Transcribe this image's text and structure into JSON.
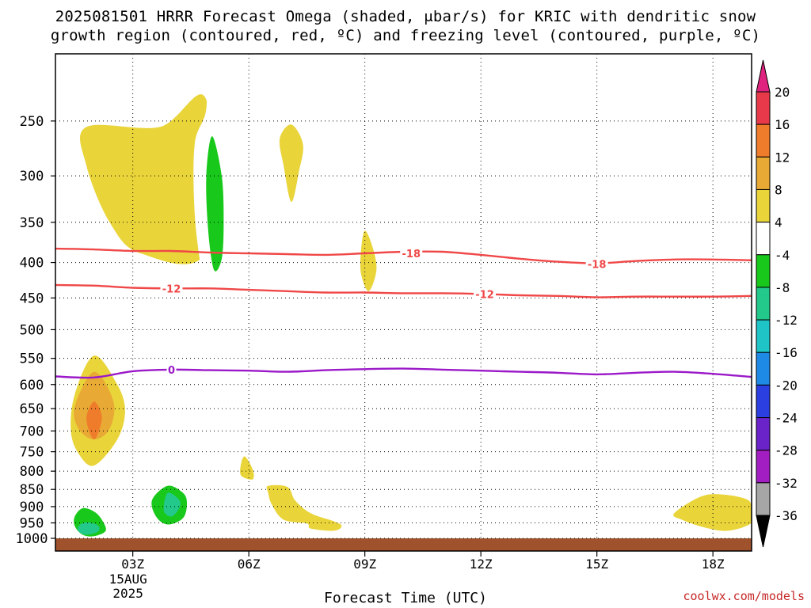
{
  "title_line1": "2025081501 HRRR Forecast Omega (shaded, μbar/s) for KRIC with dendritic snow",
  "title_line2": "growth region (contoured, red, ºC) and freezing level (contoured, purple, ºC)",
  "credit": "coolwx.com/models",
  "chart_data": {
    "type": "time-height cross-section",
    "xlabel": "Forecast Time (UTC)",
    "ylabel": "",
    "x_range_hours": [
      1,
      19
    ],
    "y_axis": "pressure (hPa), reversed, log",
    "ylim": [
      1000,
      200
    ],
    "x_ticks": [
      {
        "hour": 3,
        "label": "03Z",
        "sub": [
          "15AUG",
          "2025"
        ]
      },
      {
        "hour": 6,
        "label": "06Z"
      },
      {
        "hour": 9,
        "label": "09Z"
      },
      {
        "hour": 12,
        "label": "12Z"
      },
      {
        "hour": 15,
        "label": "15Z"
      },
      {
        "hour": 18,
        "label": "18Z"
      }
    ],
    "y_ticks": [
      250,
      300,
      350,
      400,
      450,
      500,
      550,
      600,
      650,
      700,
      750,
      800,
      850,
      900,
      950,
      1000
    ],
    "grid": true,
    "colorbar": {
      "labels": [
        "20",
        "16",
        "12",
        "8",
        "4",
        "-4",
        "-8",
        "-12",
        "-16",
        "-20",
        "-24",
        "-28",
        "-32",
        "-36"
      ],
      "bins": [
        {
          "from": 16,
          "to": 20,
          "color": "#e8394a"
        },
        {
          "from": 12,
          "to": 16,
          "color": "#ef7c2a"
        },
        {
          "from": 8,
          "to": 12,
          "color": "#e8a935"
        },
        {
          "from": 4,
          "to": 8,
          "color": "#e9d43a"
        },
        {
          "from": -4,
          "to": 4,
          "color": "#ffffff"
        },
        {
          "from": -8,
          "to": -4,
          "color": "#18c81a"
        },
        {
          "from": -12,
          "to": -8,
          "color": "#22c98a"
        },
        {
          "from": -16,
          "to": -12,
          "color": "#1fc5c6"
        },
        {
          "from": -20,
          "to": -16,
          "color": "#1f8ae6"
        },
        {
          "from": -24,
          "to": -20,
          "color": "#2b3fe0"
        },
        {
          "from": -28,
          "to": -24,
          "color": "#6a22c9"
        },
        {
          "from": -32,
          "to": -28,
          "color": "#a31ec2"
        },
        {
          "from": -36,
          "to": -32,
          "color": "#a6a6a6"
        }
      ],
      "over_color": "#e0237e",
      "under_color": "#000000"
    },
    "contours": [
      {
        "level": -18,
        "label": "-18",
        "color": "#f04747",
        "points": [
          [
            1,
            382
          ],
          [
            2,
            383
          ],
          [
            3,
            385
          ],
          [
            4,
            385
          ],
          [
            5,
            387
          ],
          [
            6,
            388
          ],
          [
            7,
            389
          ],
          [
            8,
            390
          ],
          [
            9,
            388
          ],
          [
            10,
            386
          ],
          [
            11,
            386
          ],
          [
            12,
            390
          ],
          [
            13,
            395
          ],
          [
            14,
            399
          ],
          [
            15,
            401
          ],
          [
            16,
            398
          ],
          [
            17,
            396
          ],
          [
            18,
            396
          ],
          [
            19,
            397
          ]
        ],
        "label_positions": [
          [
            10.2,
            388
          ],
          [
            15,
            402
          ]
        ]
      },
      {
        "level": -12,
        "label": "-12",
        "color": "#f04747",
        "points": [
          [
            1,
            431
          ],
          [
            2,
            432
          ],
          [
            3,
            435
          ],
          [
            4,
            436
          ],
          [
            5,
            436
          ],
          [
            6,
            438
          ],
          [
            7,
            440
          ],
          [
            8,
            442
          ],
          [
            9,
            442
          ],
          [
            10,
            443
          ],
          [
            11,
            443
          ],
          [
            12,
            444
          ],
          [
            13,
            446
          ],
          [
            14,
            447
          ],
          [
            15,
            449
          ],
          [
            16,
            448
          ],
          [
            17,
            448
          ],
          [
            18,
            448
          ],
          [
            19,
            447
          ]
        ],
        "label_positions": [
          [
            4,
            436
          ],
          [
            12.1,
            444
          ]
        ]
      },
      {
        "level": 0,
        "label": "0",
        "color": "#9b19c8",
        "points": [
          [
            1,
            584
          ],
          [
            2,
            586
          ],
          [
            3,
            574
          ],
          [
            4,
            571
          ],
          [
            5,
            572
          ],
          [
            6,
            573
          ],
          [
            7,
            575
          ],
          [
            8,
            572
          ],
          [
            9,
            570
          ],
          [
            10,
            569
          ],
          [
            11,
            571
          ],
          [
            12,
            573
          ],
          [
            13,
            575
          ],
          [
            14,
            577
          ],
          [
            15,
            580
          ],
          [
            16,
            577
          ],
          [
            17,
            575
          ],
          [
            18,
            579
          ],
          [
            19,
            585
          ]
        ],
        "label_positions": [
          [
            4,
            571
          ]
        ]
      }
    ],
    "shaded_regions": [
      {
        "value": 4,
        "points": [
          [
            1.8,
            255
          ],
          [
            3.7,
            255
          ],
          [
            4.9,
            233
          ],
          [
            4.9,
            385
          ],
          [
            3.2,
            388
          ],
          [
            2.4,
            350
          ],
          [
            1.8,
            290
          ]
        ]
      },
      {
        "value": 4,
        "points": [
          [
            7.1,
            253
          ],
          [
            7.4,
            270
          ],
          [
            7.3,
            295
          ],
          [
            7.1,
            327
          ],
          [
            6.9,
            290
          ],
          [
            6.8,
            265
          ]
        ]
      },
      {
        "value": 4,
        "points": [
          [
            9,
            360
          ],
          [
            9.2,
            380
          ],
          [
            9.3,
            410
          ],
          [
            9.1,
            440
          ],
          [
            8.9,
            415
          ],
          [
            8.9,
            385
          ]
        ]
      },
      {
        "value": 4,
        "points": [
          [
            2,
            545
          ],
          [
            2.6,
            600
          ],
          [
            2.8,
            655
          ],
          [
            2.6,
            720
          ],
          [
            2,
            785
          ],
          [
            1.6,
            755
          ],
          [
            1.4,
            700
          ],
          [
            1.5,
            620
          ]
        ]
      },
      {
        "value": 8,
        "points": [
          [
            2,
            575
          ],
          [
            2.5,
            635
          ],
          [
            2.4,
            695
          ],
          [
            2,
            720
          ],
          [
            1.6,
            695
          ],
          [
            1.5,
            645
          ]
        ]
      },
      {
        "value": 12,
        "points": [
          [
            2,
            635
          ],
          [
            2.2,
            670
          ],
          [
            2,
            720
          ],
          [
            1.8,
            672
          ]
        ]
      },
      {
        "value": 4,
        "points": [
          [
            5.9,
            762
          ],
          [
            6.1,
            795
          ],
          [
            6.1,
            822
          ],
          [
            5.8,
            812
          ],
          [
            5.8,
            780
          ]
        ]
      },
      {
        "value": 4,
        "points": [
          [
            6.5,
            840
          ],
          [
            7,
            843
          ],
          [
            7.2,
            882
          ],
          [
            7.6,
            920
          ],
          [
            8.2,
            945
          ],
          [
            8.4,
            960
          ],
          [
            8.2,
            975
          ],
          [
            7.6,
            968
          ],
          [
            7.5,
            952
          ],
          [
            6.9,
            940
          ],
          [
            6.6,
            895
          ],
          [
            6.5,
            860
          ]
        ]
      },
      {
        "value": 4,
        "points": [
          [
            17,
            920
          ],
          [
            17.7,
            870
          ],
          [
            18.3,
            865
          ],
          [
            18.9,
            880
          ],
          [
            19,
            910
          ],
          [
            19,
            950
          ],
          [
            18.4,
            975
          ],
          [
            17.8,
            965
          ],
          [
            17.2,
            940
          ]
        ]
      },
      {
        "value": -4,
        "points": [
          [
            4.9,
            198
          ],
          [
            5.2,
            198
          ],
          [
            5.2,
            245
          ],
          [
            5.5,
            310
          ],
          [
            5.7,
            350
          ],
          [
            5.8,
            400
          ],
          [
            5.6,
            455
          ],
          [
            5.3,
            487
          ],
          [
            5,
            475
          ],
          [
            4.8,
            420
          ],
          [
            4.6,
            340
          ],
          [
            4.6,
            270
          ],
          [
            4.9,
            240
          ]
        ]
      },
      {
        "value": -8,
        "points": [
          [
            5.05,
            263
          ],
          [
            5.3,
            300
          ],
          [
            5.35,
            350
          ],
          [
            5.3,
            395
          ],
          [
            5.1,
            410
          ],
          [
            4.95,
            360
          ],
          [
            4.9,
            300
          ]
        ]
      },
      {
        "value": -4,
        "points": [
          [
            10,
            232
          ],
          [
            10.3,
            255
          ],
          [
            10.1,
            290
          ],
          [
            9.8,
            265
          ],
          [
            9.8,
            250
          ]
        ]
      },
      {
        "value": -4,
        "points": [
          [
            16.1,
            678
          ],
          [
            16.4,
            725
          ],
          [
            16.4,
            780
          ],
          [
            16,
            825
          ],
          [
            15.7,
            790
          ],
          [
            15.6,
            730
          ],
          [
            15.8,
            695
          ]
        ]
      },
      {
        "value": -4,
        "points": [
          [
            3.7,
            755
          ],
          [
            4.3,
            770
          ],
          [
            4.6,
            800
          ],
          [
            5,
            868
          ],
          [
            5.3,
            920
          ],
          [
            5.8,
            965
          ],
          [
            5.6,
            985
          ],
          [
            3.5,
            990
          ],
          [
            1.5,
            997
          ],
          [
            1.2,
            985
          ],
          [
            1.3,
            930
          ],
          [
            1.6,
            897
          ],
          [
            2.6,
            882
          ],
          [
            2.9,
            855
          ],
          [
            3.3,
            800
          ]
        ]
      },
      {
        "value": -8,
        "points": [
          [
            1.7,
            905
          ],
          [
            2,
            915
          ],
          [
            2.2,
            940
          ],
          [
            2.3,
            975
          ],
          [
            2,
            993
          ],
          [
            1.7,
            988
          ],
          [
            1.5,
            960
          ],
          [
            1.5,
            930
          ]
        ]
      },
      {
        "value": -12,
        "points": [
          [
            1.8,
            948
          ],
          [
            2.1,
            958
          ],
          [
            2.1,
            978
          ],
          [
            1.8,
            988
          ],
          [
            1.6,
            978
          ],
          [
            1.6,
            960
          ]
        ]
      },
      {
        "value": -8,
        "points": [
          [
            3.9,
            840
          ],
          [
            4.3,
            860
          ],
          [
            4.4,
            890
          ],
          [
            4.3,
            935
          ],
          [
            3.9,
            955
          ],
          [
            3.6,
            930
          ],
          [
            3.5,
            880
          ]
        ]
      },
      {
        "value": -12,
        "points": [
          [
            3.9,
            860
          ],
          [
            4.2,
            880
          ],
          [
            4.2,
            905
          ],
          [
            4,
            930
          ],
          [
            3.8,
            912
          ]
        ]
      },
      {
        "value": 0,
        "points": [
          [
            3.05,
            895
          ],
          [
            3.3,
            915
          ],
          [
            3.3,
            955
          ],
          [
            3,
            975
          ],
          [
            2.8,
            955
          ],
          [
            2.8,
            920
          ]
        ]
      }
    ],
    "ground_band": {
      "from_pressure": 1000,
      "color": "#a0522d"
    }
  }
}
